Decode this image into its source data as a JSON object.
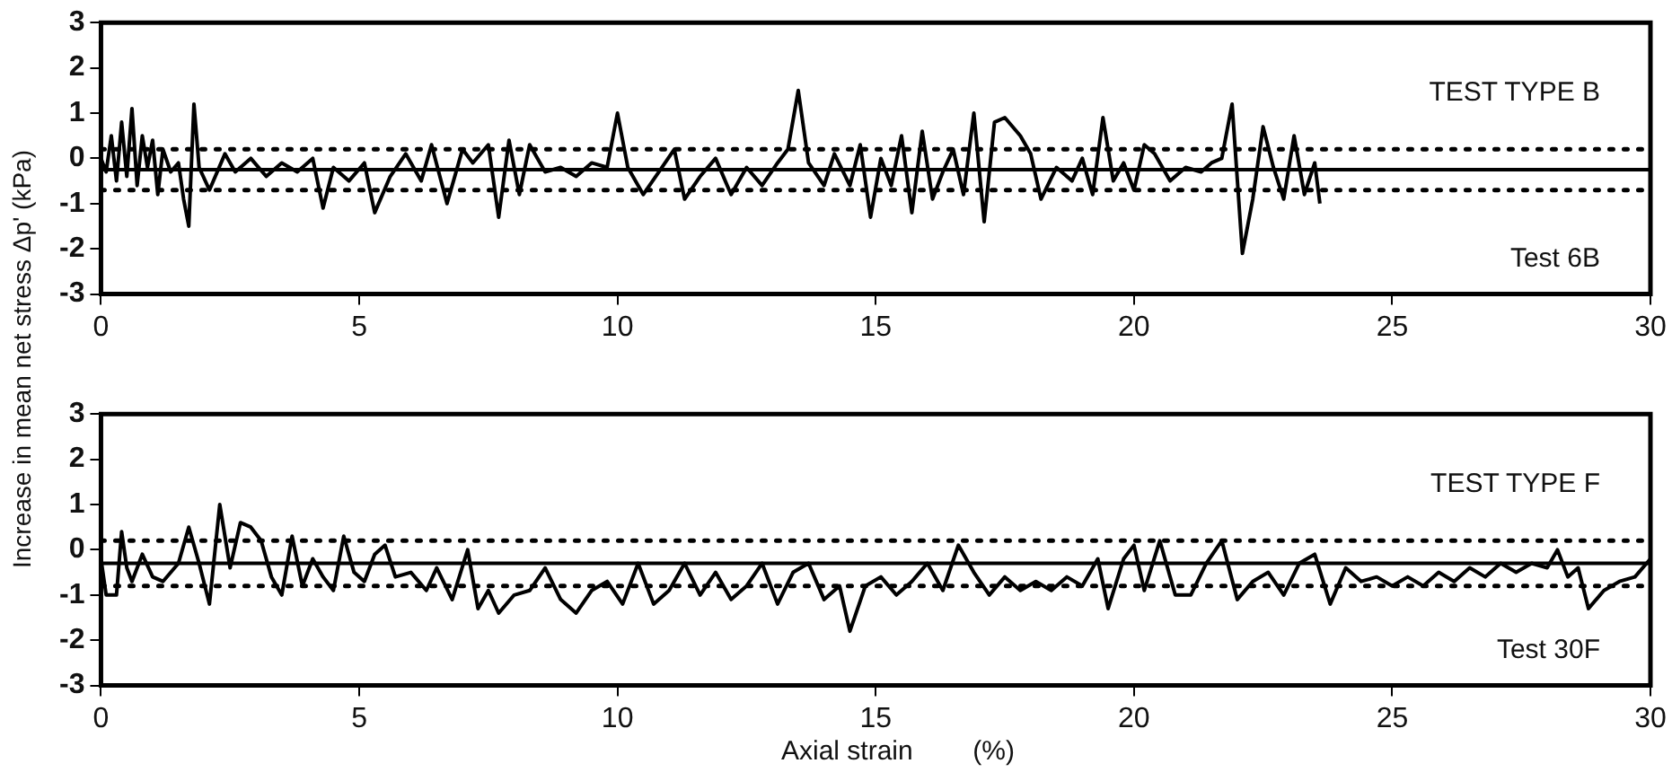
{
  "chart_data": [
    {
      "type": "line",
      "ylabel": "Increase in mean net stress Δp' (kPa)",
      "xlim": [
        0,
        30
      ],
      "xticks": [
        0,
        5,
        10,
        15,
        20,
        25,
        30
      ],
      "ylim": [
        -3,
        3
      ],
      "yticks": [
        -3,
        -2,
        -1,
        0,
        1,
        2,
        3
      ],
      "grid": false,
      "legend": false,
      "marker": "none",
      "line_style": "solid",
      "annotations": [
        "TEST TYPE B",
        "Test 6B"
      ],
      "ref_lines": [
        {
          "axis": "y",
          "value": -0.25,
          "color": "#000000",
          "line_style": "solid"
        },
        {
          "axis": "y",
          "value": 0.2,
          "color": "#000000",
          "line_style": "dotted"
        },
        {
          "axis": "y",
          "value": -0.7,
          "color": "#000000",
          "line_style": "dotted"
        }
      ],
      "series": [
        {
          "color": "#000000",
          "x": [
            0,
            0.1,
            0.2,
            0.3,
            0.4,
            0.5,
            0.6,
            0.7,
            0.8,
            0.9,
            1.0,
            1.1,
            1.2,
            1.35,
            1.5,
            1.6,
            1.7,
            1.8,
            1.9,
            2.1,
            2.4,
            2.6,
            2.9,
            3.2,
            3.5,
            3.8,
            4.1,
            4.3,
            4.5,
            4.8,
            5.1,
            5.3,
            5.6,
            5.9,
            6.2,
            6.4,
            6.7,
            7.0,
            7.2,
            7.5,
            7.7,
            7.9,
            8.1,
            8.3,
            8.6,
            8.9,
            9.2,
            9.5,
            9.8,
            10.0,
            10.2,
            10.5,
            10.8,
            11.1,
            11.3,
            11.6,
            11.9,
            12.2,
            12.5,
            12.8,
            13.1,
            13.3,
            13.5,
            13.7,
            14.0,
            14.2,
            14.5,
            14.7,
            14.9,
            15.1,
            15.3,
            15.5,
            15.7,
            15.9,
            16.1,
            16.3,
            16.5,
            16.7,
            16.9,
            17.1,
            17.3,
            17.5,
            17.8,
            18.0,
            18.2,
            18.5,
            18.8,
            19.0,
            19.2,
            19.4,
            19.6,
            19.8,
            20.0,
            20.2,
            20.4,
            20.7,
            21.0,
            21.3,
            21.5,
            21.7,
            21.9,
            22.1,
            22.3,
            22.5,
            22.7,
            22.9,
            23.1,
            23.3,
            23.5,
            23.6
          ],
          "values": [
            0,
            -0.3,
            0.5,
            -0.5,
            0.8,
            -0.4,
            1.1,
            -0.6,
            0.5,
            -0.2,
            0.4,
            -0.8,
            0.2,
            -0.3,
            -0.1,
            -0.9,
            -1.5,
            1.2,
            -0.2,
            -0.7,
            0.1,
            -0.3,
            0.0,
            -0.4,
            -0.1,
            -0.3,
            0.0,
            -1.1,
            -0.2,
            -0.5,
            -0.1,
            -1.2,
            -0.4,
            0.1,
            -0.5,
            0.3,
            -1.0,
            0.2,
            -0.1,
            0.3,
            -1.3,
            0.4,
            -0.8,
            0.3,
            -0.3,
            -0.2,
            -0.4,
            -0.1,
            -0.2,
            1.0,
            -0.2,
            -0.8,
            -0.3,
            0.2,
            -0.9,
            -0.4,
            0.0,
            -0.8,
            -0.2,
            -0.6,
            -0.1,
            0.2,
            1.5,
            -0.1,
            -0.6,
            0.1,
            -0.6,
            0.3,
            -1.3,
            0.0,
            -0.6,
            0.5,
            -1.2,
            0.6,
            -0.9,
            -0.3,
            0.2,
            -0.8,
            1.0,
            -1.4,
            0.8,
            0.9,
            0.5,
            0.1,
            -0.9,
            -0.2,
            -0.5,
            0.0,
            -0.8,
            0.9,
            -0.5,
            -0.1,
            -0.7,
            0.3,
            0.1,
            -0.5,
            -0.2,
            -0.3,
            -0.1,
            0.0,
            1.2,
            -2.1,
            -0.9,
            0.7,
            -0.2,
            -0.9,
            0.5,
            -0.8,
            -0.1,
            -1.0
          ]
        }
      ]
    },
    {
      "type": "line",
      "xlabel": "Axial strain        (%)",
      "xlim": [
        0,
        30
      ],
      "xticks": [
        0,
        5,
        10,
        15,
        20,
        25,
        30
      ],
      "ylim": [
        -3,
        3
      ],
      "yticks": [
        -3,
        -2,
        -1,
        0,
        1,
        2,
        3
      ],
      "grid": false,
      "legend": false,
      "marker": "none",
      "line_style": "solid",
      "annotations": [
        "TEST TYPE F",
        "Test 30F"
      ],
      "ref_lines": [
        {
          "axis": "y",
          "value": -0.3,
          "color": "#000000",
          "line_style": "solid"
        },
        {
          "axis": "y",
          "value": 0.2,
          "color": "#000000",
          "line_style": "dotted"
        },
        {
          "axis": "y",
          "value": -0.8,
          "color": "#000000",
          "line_style": "dotted"
        }
      ],
      "series": [
        {
          "color": "#000000",
          "x": [
            0,
            0.1,
            0.3,
            0.4,
            0.5,
            0.6,
            0.8,
            1.0,
            1.2,
            1.5,
            1.7,
            1.9,
            2.1,
            2.3,
            2.5,
            2.7,
            2.9,
            3.1,
            3.3,
            3.5,
            3.7,
            3.9,
            4.1,
            4.3,
            4.5,
            4.7,
            4.9,
            5.1,
            5.3,
            5.5,
            5.7,
            6.0,
            6.3,
            6.5,
            6.8,
            7.1,
            7.3,
            7.5,
            7.7,
            8.0,
            8.3,
            8.6,
            8.9,
            9.2,
            9.5,
            9.8,
            10.1,
            10.4,
            10.7,
            11.0,
            11.3,
            11.6,
            11.9,
            12.2,
            12.5,
            12.8,
            13.1,
            13.4,
            13.7,
            14.0,
            14.3,
            14.5,
            14.8,
            15.1,
            15.4,
            15.7,
            16.0,
            16.3,
            16.6,
            16.9,
            17.2,
            17.5,
            17.8,
            18.1,
            18.4,
            18.7,
            19.0,
            19.3,
            19.5,
            19.8,
            20.0,
            20.2,
            20.5,
            20.8,
            21.1,
            21.4,
            21.7,
            22.0,
            22.3,
            22.6,
            22.9,
            23.2,
            23.5,
            23.8,
            24.1,
            24.4,
            24.7,
            25.0,
            25.3,
            25.6,
            25.9,
            26.2,
            26.5,
            26.8,
            27.1,
            27.4,
            27.7,
            28.0,
            28.2,
            28.4,
            28.6,
            28.8,
            29.1,
            29.4,
            29.7,
            30.0
          ],
          "values": [
            -0.2,
            -1.0,
            -1.0,
            0.4,
            -0.4,
            -0.7,
            -0.1,
            -0.6,
            -0.7,
            -0.3,
            0.5,
            -0.3,
            -1.2,
            1.0,
            -0.4,
            0.6,
            0.5,
            0.2,
            -0.6,
            -1.0,
            0.3,
            -0.8,
            -0.2,
            -0.6,
            -0.9,
            0.3,
            -0.5,
            -0.7,
            -0.1,
            0.1,
            -0.6,
            -0.5,
            -0.9,
            -0.4,
            -1.1,
            0.0,
            -1.3,
            -0.9,
            -1.4,
            -1.0,
            -0.9,
            -0.4,
            -1.1,
            -1.4,
            -0.9,
            -0.7,
            -1.2,
            -0.3,
            -1.2,
            -0.9,
            -0.3,
            -1.0,
            -0.5,
            -1.1,
            -0.8,
            -0.3,
            -1.2,
            -0.5,
            -0.3,
            -1.1,
            -0.8,
            -1.8,
            -0.8,
            -0.6,
            -1.0,
            -0.7,
            -0.3,
            -0.9,
            0.1,
            -0.5,
            -1.0,
            -0.6,
            -0.9,
            -0.7,
            -0.9,
            -0.6,
            -0.8,
            -0.2,
            -1.3,
            -0.2,
            0.1,
            -0.9,
            0.2,
            -1.0,
            -1.0,
            -0.3,
            0.2,
            -1.1,
            -0.7,
            -0.5,
            -1.0,
            -0.3,
            -0.1,
            -1.2,
            -0.4,
            -0.7,
            -0.6,
            -0.8,
            -0.6,
            -0.8,
            -0.5,
            -0.7,
            -0.4,
            -0.6,
            -0.3,
            -0.5,
            -0.3,
            -0.4,
            0.0,
            -0.6,
            -0.4,
            -1.3,
            -0.9,
            -0.7,
            -0.6,
            -0.2
          ]
        }
      ]
    }
  ]
}
